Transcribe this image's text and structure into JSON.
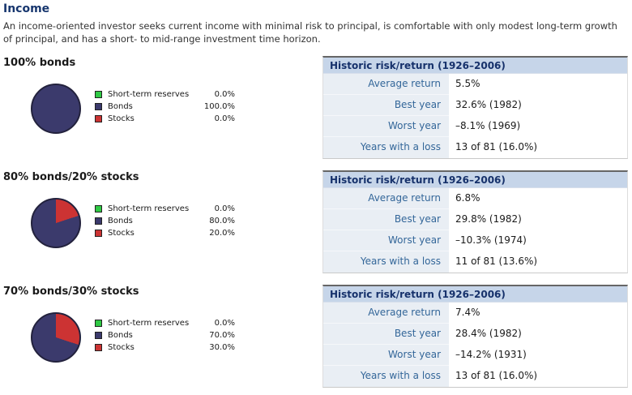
{
  "page": {
    "title": "Income",
    "description": "An income-oriented investor seeks current income with minimal risk to principal, is comfortable with only modest long-term growth of principal, and has a short- to mid-range investment time horizon."
  },
  "colors": {
    "title_navy": "#17366e",
    "reserves_green": "#2fc944",
    "bonds_navy": "#3b3a6c",
    "stocks_red": "#cc3333",
    "table_header_bg": "#c6d5e9",
    "table_header_text": "#16316b",
    "label_col_bg": "#e9eef4",
    "label_text_blue": "#336699"
  },
  "legend": {
    "items": [
      "Short-term reserves",
      "Bonds",
      "Stocks"
    ]
  },
  "table": {
    "header": "Historic risk/return (1926–2006)",
    "row_labels": [
      "Average return",
      "Best year",
      "Worst year",
      "Years with a loss"
    ]
  },
  "sections": [
    {
      "heading": "100% bonds",
      "pie": {
        "reserves": 0.0,
        "bonds": 100.0,
        "stocks": 0.0
      },
      "allocations": [
        "0.0%",
        "100.0%",
        "0.0%"
      ],
      "values": [
        "5.5%",
        "32.6% (1982)",
        "–8.1% (1969)",
        "13 of 81 (16.0%)"
      ]
    },
    {
      "heading": "80% bonds/20% stocks",
      "pie": {
        "reserves": 0.0,
        "bonds": 80.0,
        "stocks": 20.0
      },
      "allocations": [
        "0.0%",
        "80.0%",
        "20.0%"
      ],
      "values": [
        "6.8%",
        "29.8% (1982)",
        "–10.3% (1974)",
        "11 of 81 (13.6%)"
      ]
    },
    {
      "heading": "70% bonds/30% stocks",
      "pie": {
        "reserves": 0.0,
        "bonds": 70.0,
        "stocks": 30.0
      },
      "allocations": [
        "0.0%",
        "70.0%",
        "30.0%"
      ],
      "values": [
        "7.4%",
        "28.4% (1982)",
        "–14.2% (1931)",
        "13 of 81 (16.0%)"
      ]
    }
  ],
  "chart_data": [
    {
      "type": "pie",
      "title": "100% bonds",
      "labels": [
        "Short-term reserves",
        "Bonds",
        "Stocks"
      ],
      "values": [
        0.0,
        100.0,
        0.0
      ]
    },
    {
      "type": "pie",
      "title": "80% bonds/20% stocks",
      "labels": [
        "Short-term reserves",
        "Bonds",
        "Stocks"
      ],
      "values": [
        0.0,
        80.0,
        20.0
      ]
    },
    {
      "type": "pie",
      "title": "70% bonds/30% stocks",
      "labels": [
        "Short-term reserves",
        "Bonds",
        "Stocks"
      ],
      "values": [
        0.0,
        70.0,
        30.0
      ]
    }
  ]
}
